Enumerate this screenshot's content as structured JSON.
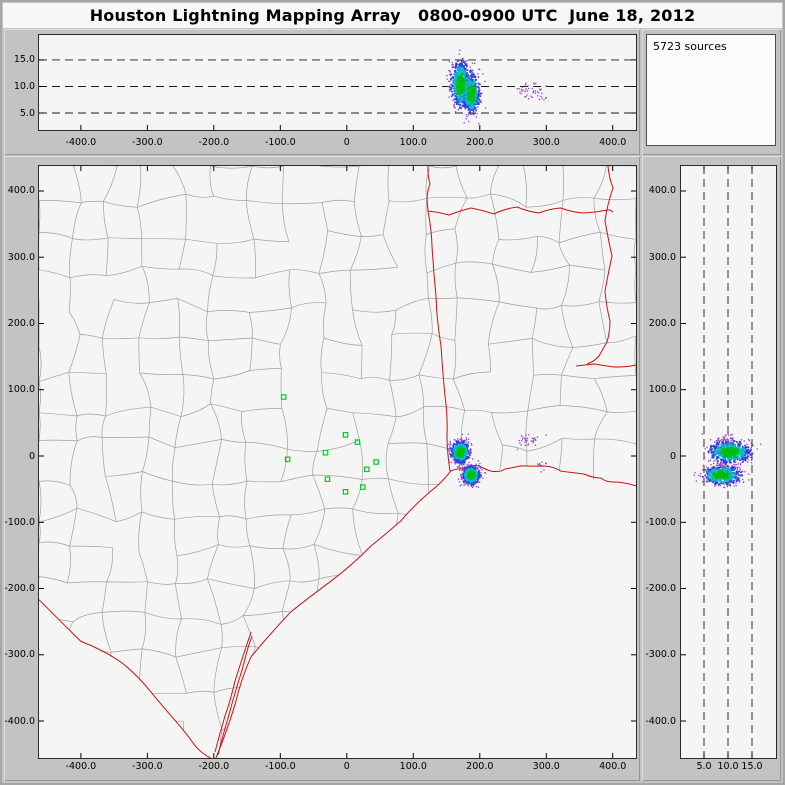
{
  "title": "Houston Lightning Mapping Array   0800-0900 UTC  June 18, 2012",
  "sources_label": "5723 sources",
  "colors": {
    "window_bg": "#c3c3c3",
    "titlebar_bg": "#f7f7f7",
    "plot_bg": "#f5f5f5",
    "county_line": "#9f9f9f",
    "border_red": "#cc1111",
    "station_green": "#00cc22",
    "dash_line": "#1a1a1a",
    "core": "#00be00",
    "mid": "#00bfc8",
    "outer": "#2e3fe0",
    "fringe": "#9440d4"
  },
  "chart_data": {
    "type": "scatter",
    "total_sources": 5723,
    "panels": [
      {
        "name": "altitude-vs-east-west",
        "x_axis": {
          "ticks": [
            -400,
            -300,
            -200,
            -100,
            0,
            100,
            200,
            300,
            400
          ],
          "labels": [
            "-400.0",
            "-300.0",
            "-200.0",
            "-100.0",
            "0",
            "100.0",
            "200.0",
            "300.0",
            "400.0"
          ],
          "range_km": [
            -463,
            435
          ]
        },
        "y_axis": {
          "ticks": [
            15,
            10,
            5
          ],
          "labels": [
            "15.0",
            "10.0",
            "5.0"
          ],
          "range_km": [
            1.8,
            19.7
          ]
        },
        "grid": "horizontal-dashed"
      },
      {
        "name": "plan-view-map",
        "x_axis": {
          "ticks": [
            -400,
            -300,
            -200,
            -100,
            0,
            100,
            200,
            300,
            400
          ],
          "labels": [
            "-400.0",
            "-300.0",
            "-200.0",
            "-100.0",
            "0",
            "100.0",
            "200.0",
            "300.0",
            "400.0"
          ],
          "range_km": [
            -463,
            435
          ]
        },
        "y_axis": {
          "ticks": [
            400,
            300,
            200,
            100,
            0,
            -100,
            -200,
            -300,
            -400
          ],
          "labels": [
            "400.0",
            "300.0",
            "200.0",
            "100.0",
            "0",
            "-100.0",
            "-200.0",
            "-300.0",
            "-400.0"
          ],
          "range_km": [
            -455.8,
            437.7
          ]
        },
        "grid": "none"
      },
      {
        "name": "altitude-vs-north-south",
        "x_axis": {
          "ticks": [
            5,
            10,
            15
          ],
          "labels": [
            "5.0",
            "10.0",
            "15.0"
          ],
          "range_km": [
            0.2,
            20
          ]
        },
        "y_axis": {
          "ticks": [
            400,
            300,
            200,
            100,
            0,
            -100,
            -200,
            -300,
            -400
          ],
          "labels": [
            "400.0",
            "300.0",
            "200.0",
            "100.0",
            "0",
            "-100.0",
            "-200.0",
            "-300.0",
            "-400.0"
          ],
          "range_km": [
            -455.8,
            437.7
          ]
        },
        "grid": "vertical-dashed"
      }
    ],
    "clusters": [
      {
        "name": "storm-cell-north",
        "ew_km": 171,
        "ns_km": 6,
        "alt_km": 10.4,
        "sigma_ew_km": 7,
        "sigma_ns_km": 8,
        "sigma_alt_km": 2.1,
        "points": 680,
        "fringe_only": false
      },
      {
        "name": "storm-cell-south",
        "ew_km": 187,
        "ns_km": -29,
        "alt_km": 8.7,
        "sigma_ew_km": 6.5,
        "sigma_ns_km": 7,
        "sigma_alt_km": 1.9,
        "points": 540,
        "fringe_only": false
      },
      {
        "name": "weak-cluster-east",
        "ew_km": 271,
        "ns_km": 24,
        "alt_km": 9.0,
        "sigma_ew_km": 10,
        "sigma_ns_km": 5,
        "sigma_alt_km": 0.8,
        "points": 34,
        "fringe_only": true
      },
      {
        "name": "weak-speck-southeast",
        "ew_km": 291,
        "ns_km": -13,
        "alt_km": 8.5,
        "sigma_ew_km": 4,
        "sigma_ns_km": 3,
        "sigma_alt_km": 0.8,
        "points": 12,
        "fringe_only": true
      }
    ],
    "stations_km": [
      [
        -95,
        89
      ],
      [
        -2,
        32
      ],
      [
        16,
        21
      ],
      [
        -32,
        5
      ],
      [
        44,
        -9
      ],
      [
        -29,
        -35
      ],
      [
        -2,
        -54
      ],
      [
        24,
        -47
      ],
      [
        -89,
        -5
      ],
      [
        30,
        -20
      ]
    ]
  }
}
